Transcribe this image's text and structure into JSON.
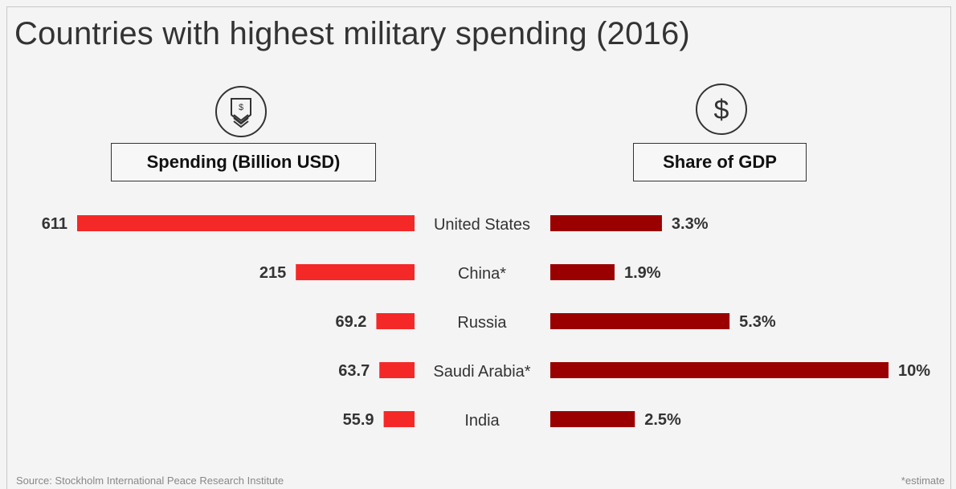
{
  "title": "Countries with highest military spending (2016)",
  "left_header": "Spending (Billion USD)",
  "right_header": "Share of GDP",
  "icons": {
    "left": "badge-icon",
    "right": "dollar-icon"
  },
  "footer": {
    "source": "Source: Stockholm International Peace Research Institute",
    "note": "*estimate"
  },
  "colors": {
    "spending_bar": "#f52828",
    "gdp_bar": "#9a0000",
    "text": "#333333",
    "background": "#f4f4f4"
  },
  "chart_data": {
    "type": "bar",
    "categories": [
      "United States",
      "China*",
      "Russia",
      "Saudi Arabia*",
      "India"
    ],
    "series": [
      {
        "name": "Spending (Billion USD)",
        "values": [
          611,
          215,
          69.2,
          63.7,
          55.9
        ],
        "labels": [
          "611",
          "215",
          "69.2",
          "63.7",
          "55.9"
        ]
      },
      {
        "name": "Share of GDP",
        "values": [
          3.3,
          1.9,
          5.3,
          10,
          2.5
        ],
        "labels": [
          "3.3%",
          "1.9%",
          "5.3%",
          "10%",
          "2.5%"
        ]
      }
    ]
  }
}
